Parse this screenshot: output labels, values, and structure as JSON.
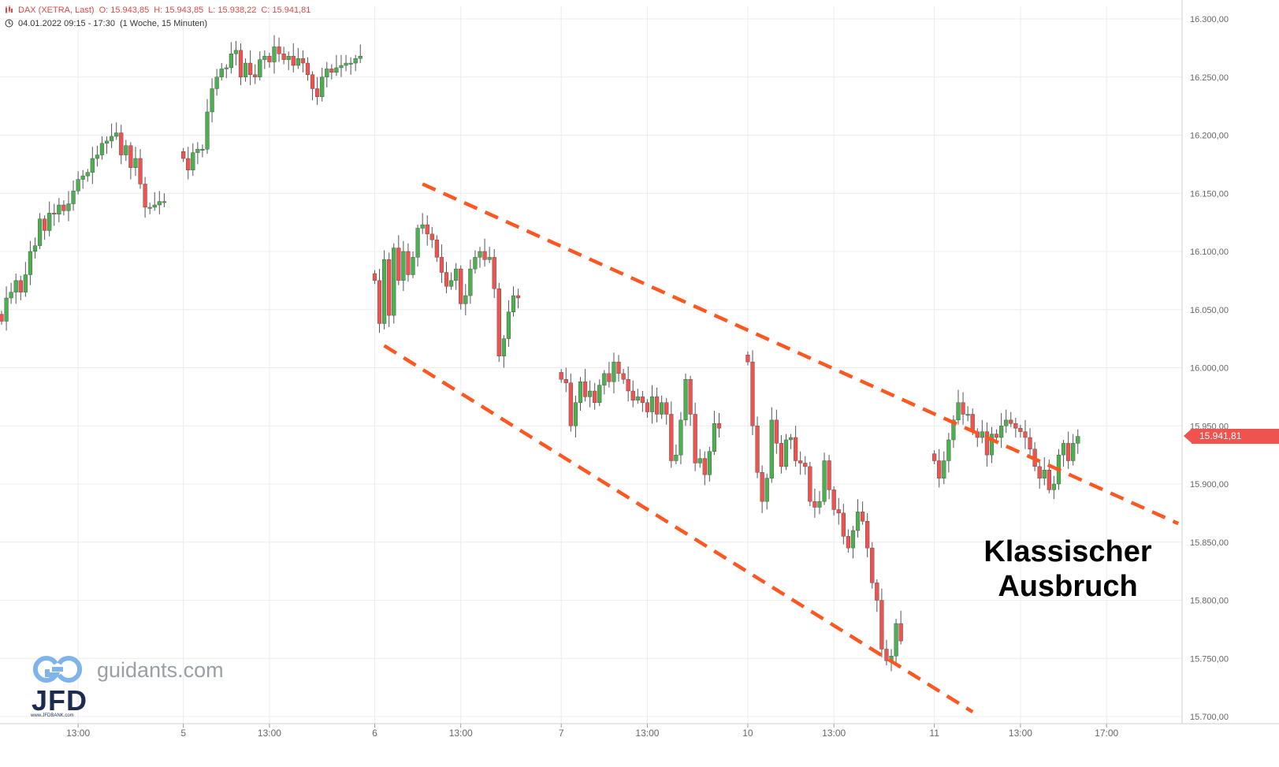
{
  "header": {
    "title": "DAX (XETRA, Last)",
    "open": "O: 15.943,85",
    "high": "H: 15.943,85",
    "low": "L: 15.938,22",
    "close": "C: 15.941,81",
    "range": "04.01.2022 09:15 - 17:30",
    "interval": "(1 Woche, 15 Minuten)"
  },
  "annotation": {
    "line1": "Klassischer",
    "line2": "Ausbruch"
  },
  "logo": {
    "site": "guidants.com",
    "brand": "JFD",
    "url": "www.JFDBANK.com"
  },
  "last_price_label": "15.941,81",
  "colors": {
    "up": "#4caf50",
    "down": "#ef5350",
    "channel": "#ff5722",
    "grid": "#ececec",
    "axis_text": "#666666"
  },
  "chart_data": {
    "type": "candlestick",
    "title": "DAX (XETRA, Last)",
    "ylim": [
      15690,
      16310
    ],
    "yticks": [
      "16.300,00",
      "16.250,00",
      "16.200,00",
      "16.150,00",
      "16.100,00",
      "16.050,00",
      "16.000,00",
      "15.950,00",
      "15.900,00",
      "15.850,00",
      "15.800,00",
      "15.750,00",
      "15.700,00"
    ],
    "ytick_values": [
      16300,
      16250,
      16200,
      16150,
      16100,
      16050,
      16000,
      15950,
      15900,
      15850,
      15800,
      15750,
      15700
    ],
    "xticks": [
      "13:00",
      "5",
      "13:00",
      "6",
      "13:00",
      "7",
      "13:00",
      "10",
      "13:00",
      "11",
      "13:00",
      "17:00"
    ],
    "xtick_index": [
      16,
      38,
      56,
      78,
      96,
      117,
      135,
      156,
      174,
      195,
      213,
      231
    ],
    "total_slots": 247,
    "segments": [
      {
        "start": 0,
        "closes": [
          16040,
          16060,
          16065,
          16075,
          16065,
          16080,
          16100,
          16105,
          16128,
          16118,
          16133,
          16132,
          16140,
          16135,
          16141,
          16152,
          16162,
          16165,
          16168,
          16180,
          16183,
          16193,
          16195,
          16199,
          16202,
          16183,
          16191,
          16172,
          16180,
          16158,
          16138,
          16138,
          16140,
          16143,
          16143
        ]
      },
      {
        "start": 38,
        "closes": [
          16180,
          16170,
          16185,
          16188,
          16188,
          16220,
          16240,
          16250,
          16257,
          16258,
          16270,
          16273,
          16250,
          16262,
          16252,
          16250,
          16265,
          16268,
          16263,
          16276,
          16270,
          16265,
          16268,
          16260,
          16266,
          16262,
          16252,
          16240,
          16233,
          16250,
          16257,
          16254,
          16258,
          16260,
          16262,
          16262,
          16266,
          16268
        ]
      },
      {
        "start": 78,
        "closes": [
          16075,
          16038,
          16093,
          16045,
          16103,
          16075,
          16100,
          16080,
          16095,
          16120,
          16123,
          16115,
          16110,
          16095,
          16082,
          16070,
          16075,
          16085,
          16055,
          16062,
          16085,
          16095,
          16100,
          16093,
          16095,
          16068,
          16010,
          16025,
          16048,
          16062,
          16060
        ]
      },
      {
        "start": 117,
        "closes": [
          15990,
          15987,
          15950,
          15970,
          15988,
          15975,
          15980,
          15970,
          15985,
          15995,
          15988,
          16005,
          15995,
          15990,
          15980,
          15972,
          15975,
          15970,
          15962,
          15975,
          15960,
          15970,
          15960,
          15920,
          15925,
          15955,
          15990,
          15960,
          15918,
          15922,
          15908,
          15928,
          15952,
          15948
        ]
      },
      {
        "start": 156,
        "closes": [
          16005,
          15950,
          15910,
          15885,
          15905,
          15955,
          15935,
          15915,
          15938,
          15940,
          15920,
          15918,
          15915,
          15885,
          15880,
          15885,
          15920,
          15895,
          15878,
          15875,
          15855,
          15845,
          15860,
          15876,
          15868,
          15845,
          15815,
          15800,
          15758,
          15748,
          15752,
          15780,
          15765
        ]
      },
      {
        "start": 195,
        "closes": [
          15920,
          15905,
          15920,
          15938,
          15955,
          15970,
          15960,
          15960,
          15945,
          15940,
          15945,
          15925,
          15943,
          15940,
          15950,
          15955,
          15952,
          15948,
          15945,
          15940,
          15930,
          15915,
          15905,
          15912,
          15895,
          15900,
          15925,
          15935,
          15920,
          15935,
          15941
        ]
      }
    ],
    "channel": {
      "upper": {
        "from": {
          "index": 88,
          "value": 16158
        },
        "to": {
          "index": 246,
          "value": 15866
        }
      },
      "lower": {
        "from": {
          "index": 80,
          "value": 16019
        },
        "to": {
          "index": 203,
          "value": 15704
        }
      }
    }
  }
}
